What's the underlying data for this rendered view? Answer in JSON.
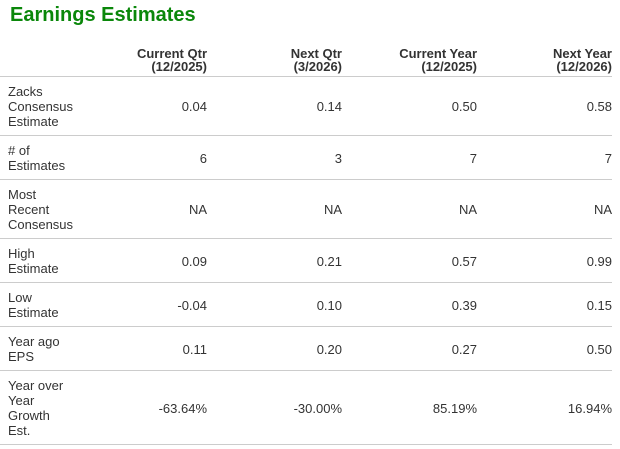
{
  "title": "Earnings Estimates",
  "colors": {
    "title_green": "#0a870a",
    "text": "#333333",
    "rule": "#cccccc",
    "bg": "#ffffff"
  },
  "table": {
    "columns": [
      {
        "label": "Current Qtr",
        "sublabel": "(12/2025)"
      },
      {
        "label": "Next Qtr",
        "sublabel": "(3/2026)"
      },
      {
        "label": "Current Year",
        "sublabel": "(12/2025)"
      },
      {
        "label": "Next Year",
        "sublabel": "(12/2026)"
      }
    ],
    "rows": [
      {
        "label": "Zacks Consensus Estimate",
        "values": [
          "0.04",
          "0.14",
          "0.50",
          "0.58"
        ]
      },
      {
        "label": "# of Estimates",
        "values": [
          "6",
          "3",
          "7",
          "7"
        ]
      },
      {
        "label": "Most Recent Consensus",
        "values": [
          "NA",
          "NA",
          "NA",
          "NA"
        ]
      },
      {
        "label": "High Estimate",
        "values": [
          "0.09",
          "0.21",
          "0.57",
          "0.99"
        ]
      },
      {
        "label": "Low Estimate",
        "values": [
          "-0.04",
          "0.10",
          "0.39",
          "0.15"
        ]
      },
      {
        "label": "Year ago EPS",
        "values": [
          "0.11",
          "0.20",
          "0.27",
          "0.50"
        ]
      },
      {
        "label": "Year over Year Growth Est.",
        "values": [
          "-63.64%",
          "-30.00%",
          "85.19%",
          "16.94%"
        ]
      }
    ]
  }
}
